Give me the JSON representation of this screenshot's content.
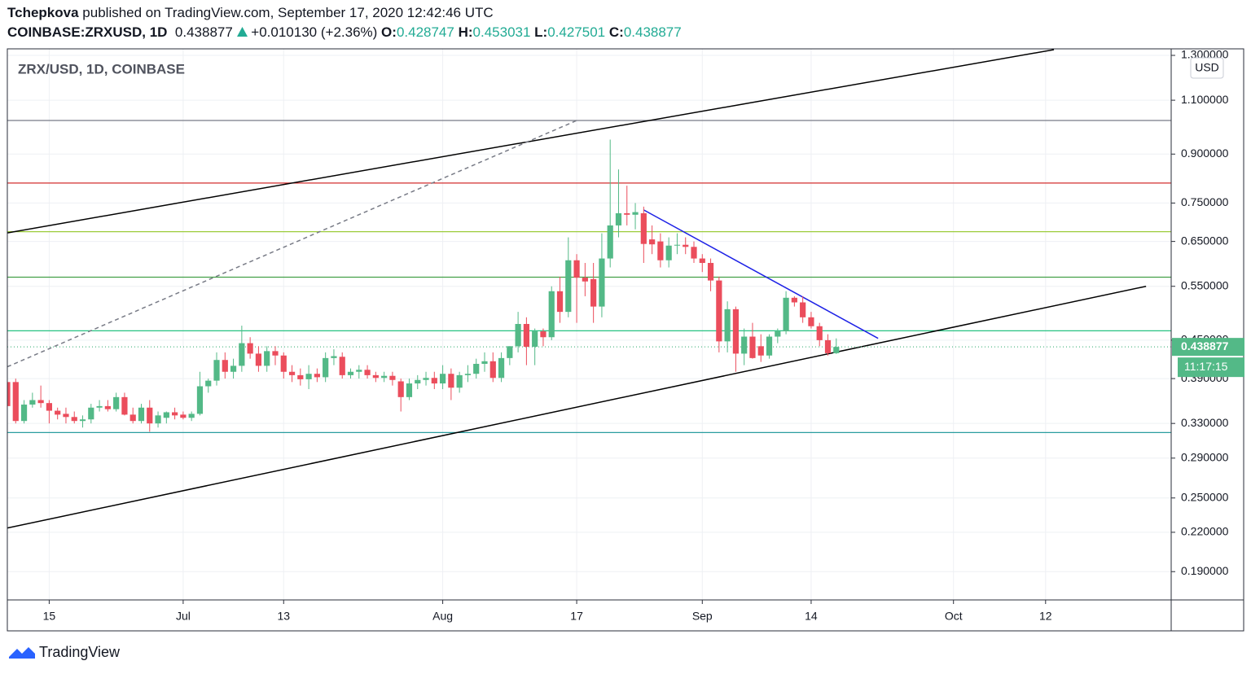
{
  "header": {
    "author": "Tchepkova",
    "published": "published on TradingView.com, September 17, 2020 12:42:46 UTC",
    "symbol": "COINBASE:ZRXUSD, 1D",
    "change": "+0.010130 (+2.36%)",
    "open_label": "O:",
    "high_label": "H:",
    "low_label": "L:",
    "close_label": "C:"
  },
  "chart_data": {
    "type": "candlestick",
    "legend": "ZRX/USD, 1D, COINBASE",
    "currency": "USD",
    "countdown": "11:17:15",
    "log_scale": true,
    "grid": true,
    "up_color": "#53b987",
    "down_color": "#eb4d5c",
    "x": [
      "2020-06-10",
      "2020-06-11",
      "2020-06-12",
      "2020-06-13",
      "2020-06-14",
      "2020-06-15",
      "2020-06-16",
      "2020-06-17",
      "2020-06-18",
      "2020-06-19",
      "2020-06-20",
      "2020-06-21",
      "2020-06-22",
      "2020-06-23",
      "2020-06-24",
      "2020-06-25",
      "2020-06-26",
      "2020-06-27",
      "2020-06-28",
      "2020-06-29",
      "2020-06-30",
      "2020-07-01",
      "2020-07-02",
      "2020-07-03",
      "2020-07-04",
      "2020-07-05",
      "2020-07-06",
      "2020-07-07",
      "2020-07-08",
      "2020-07-09",
      "2020-07-10",
      "2020-07-11",
      "2020-07-12",
      "2020-07-13",
      "2020-07-14",
      "2020-07-15",
      "2020-07-16",
      "2020-07-17",
      "2020-07-18",
      "2020-07-19",
      "2020-07-20",
      "2020-07-21",
      "2020-07-22",
      "2020-07-23",
      "2020-07-24",
      "2020-07-25",
      "2020-07-26",
      "2020-07-27",
      "2020-07-28",
      "2020-07-29",
      "2020-07-30",
      "2020-07-31",
      "2020-08-01",
      "2020-08-02",
      "2020-08-03",
      "2020-08-04",
      "2020-08-05",
      "2020-08-06",
      "2020-08-07",
      "2020-08-08",
      "2020-08-09",
      "2020-08-10",
      "2020-08-11",
      "2020-08-12",
      "2020-08-13",
      "2020-08-14",
      "2020-08-15",
      "2020-08-16",
      "2020-08-17",
      "2020-08-18",
      "2020-08-19",
      "2020-08-20",
      "2020-08-21",
      "2020-08-22",
      "2020-08-23",
      "2020-08-24",
      "2020-08-25",
      "2020-08-26",
      "2020-08-27",
      "2020-08-28",
      "2020-08-29",
      "2020-08-30",
      "2020-08-31",
      "2020-09-01",
      "2020-09-02",
      "2020-09-03",
      "2020-09-04",
      "2020-09-05",
      "2020-09-06",
      "2020-09-07",
      "2020-09-08",
      "2020-09-09",
      "2020-09-10",
      "2020-09-11",
      "2020-09-12",
      "2020-09-13",
      "2020-09-14",
      "2020-09-15",
      "2020-09-16",
      "2020-09-17"
    ],
    "open": [
      0.385,
      0.385,
      0.333,
      0.354,
      0.36,
      0.356,
      0.346,
      0.342,
      0.338,
      0.333,
      0.335,
      0.35,
      0.352,
      0.348,
      0.364,
      0.341,
      0.333,
      0.35,
      0.33,
      0.337,
      0.344,
      0.341,
      0.337,
      0.342,
      0.379,
      0.387,
      0.418,
      0.4,
      0.409,
      0.445,
      0.428,
      0.409,
      0.432,
      0.425,
      0.4,
      0.395,
      0.389,
      0.397,
      0.392,
      0.421,
      0.423,
      0.395,
      0.4,
      0.403,
      0.395,
      0.391,
      0.394,
      0.386,
      0.364,
      0.383,
      0.388,
      0.391,
      0.383,
      0.397,
      0.377,
      0.395,
      0.397,
      0.412,
      0.416,
      0.391,
      0.421,
      0.44,
      0.478,
      0.439,
      0.465,
      0.455,
      0.54,
      0.5,
      0.606,
      0.568,
      0.565,
      0.51,
      0.61,
      0.69,
      0.722,
      0.718,
      0.722,
      0.655,
      0.65,
      0.606,
      0.64,
      0.642,
      0.637,
      0.61,
      0.6,
      0.562,
      0.448,
      0.505,
      0.428,
      0.456,
      0.44,
      0.425,
      0.456,
      0.465,
      0.527,
      0.518,
      0.49,
      0.474,
      0.45,
      0.428747
    ],
    "high": [
      0.4,
      0.39,
      0.36,
      0.37,
      0.38,
      0.36,
      0.35,
      0.35,
      0.345,
      0.34,
      0.355,
      0.36,
      0.36,
      0.37,
      0.37,
      0.35,
      0.355,
      0.36,
      0.345,
      0.345,
      0.35,
      0.345,
      0.345,
      0.4,
      0.39,
      0.43,
      0.43,
      0.42,
      0.475,
      0.455,
      0.44,
      0.44,
      0.44,
      0.43,
      0.41,
      0.405,
      0.41,
      0.405,
      0.43,
      0.435,
      0.43,
      0.405,
      0.41,
      0.41,
      0.4,
      0.4,
      0.4,
      0.39,
      0.39,
      0.395,
      0.4,
      0.4,
      0.41,
      0.405,
      0.4,
      0.41,
      0.42,
      0.43,
      0.43,
      0.43,
      0.44,
      0.5,
      0.49,
      0.47,
      0.47,
      0.55,
      0.57,
      0.66,
      0.62,
      0.6,
      0.6,
      0.67,
      0.95,
      0.85,
      0.8,
      0.75,
      0.74,
      0.69,
      0.67,
      0.66,
      0.67,
      0.66,
      0.65,
      0.62,
      0.61,
      0.57,
      0.52,
      0.51,
      0.47,
      0.48,
      0.46,
      0.46,
      0.47,
      0.54,
      0.53,
      0.53,
      0.5,
      0.48,
      0.46,
      0.453031
    ],
    "low": [
      0.35,
      0.33,
      0.33,
      0.35,
      0.35,
      0.33,
      0.335,
      0.33,
      0.33,
      0.325,
      0.33,
      0.345,
      0.345,
      0.345,
      0.34,
      0.33,
      0.33,
      0.32,
      0.325,
      0.33,
      0.335,
      0.335,
      0.333,
      0.34,
      0.37,
      0.38,
      0.39,
      0.39,
      0.4,
      0.42,
      0.4,
      0.4,
      0.41,
      0.39,
      0.385,
      0.38,
      0.375,
      0.385,
      0.385,
      0.41,
      0.39,
      0.39,
      0.39,
      0.39,
      0.385,
      0.385,
      0.38,
      0.345,
      0.36,
      0.375,
      0.38,
      0.375,
      0.375,
      0.36,
      0.37,
      0.385,
      0.39,
      0.4,
      0.385,
      0.385,
      0.41,
      0.43,
      0.41,
      0.41,
      0.44,
      0.45,
      0.48,
      0.49,
      0.48,
      0.53,
      0.48,
      0.49,
      0.59,
      0.66,
      0.69,
      0.68,
      0.6,
      0.62,
      0.59,
      0.59,
      0.62,
      0.62,
      0.6,
      0.58,
      0.54,
      0.43,
      0.43,
      0.4,
      0.41,
      0.42,
      0.415,
      0.42,
      0.445,
      0.46,
      0.51,
      0.48,
      0.47,
      0.44,
      0.425,
      0.427501
    ],
    "close": [
      0.352,
      0.333,
      0.354,
      0.36,
      0.356,
      0.346,
      0.341,
      0.338,
      0.333,
      0.335,
      0.35,
      0.352,
      0.348,
      0.364,
      0.341,
      0.333,
      0.35,
      0.33,
      0.34,
      0.344,
      0.34,
      0.337,
      0.342,
      0.379,
      0.387,
      0.418,
      0.4,
      0.409,
      0.445,
      0.428,
      0.409,
      0.432,
      0.425,
      0.4,
      0.395,
      0.389,
      0.397,
      0.392,
      0.421,
      0.424,
      0.395,
      0.4,
      0.403,
      0.395,
      0.391,
      0.394,
      0.388,
      0.364,
      0.383,
      0.388,
      0.391,
      0.383,
      0.397,
      0.377,
      0.395,
      0.397,
      0.412,
      0.416,
      0.391,
      0.421,
      0.44,
      0.478,
      0.439,
      0.465,
      0.455,
      0.54,
      0.5,
      0.606,
      0.568,
      0.56,
      0.51,
      0.61,
      0.69,
      0.722,
      0.718,
      0.725,
      0.644,
      0.643,
      0.606,
      0.64,
      0.642,
      0.637,
      0.61,
      0.6,
      0.562,
      0.448,
      0.505,
      0.428,
      0.456,
      0.421,
      0.425,
      0.456,
      0.465,
      0.527,
      0.518,
      0.49,
      0.474,
      0.45,
      0.4287,
      0.438877
    ],
    "xlim": [
      "2020-06-10",
      "2020-10-27"
    ],
    "xticks": [
      {
        "value": "2020-06-15",
        "label": "15"
      },
      {
        "value": "2020-07-01",
        "label": "Jul"
      },
      {
        "value": "2020-07-13",
        "label": "13"
      },
      {
        "value": "2020-08-01",
        "label": "Aug"
      },
      {
        "value": "2020-08-17",
        "label": "17"
      },
      {
        "value": "2020-09-01",
        "label": "Sep"
      },
      {
        "value": "2020-09-14",
        "label": "14"
      },
      {
        "value": "2020-10-01",
        "label": "Oct"
      },
      {
        "value": "2020-10-12",
        "label": "12"
      }
    ],
    "ylim": [
      0.171,
      1.332
    ],
    "yticks": [
      {
        "value": 1.3,
        "label": "1.300000"
      },
      {
        "value": 1.1,
        "label": "1.100000"
      },
      {
        "value": 0.9,
        "label": "0.900000"
      },
      {
        "value": 0.75,
        "label": "0.750000"
      },
      {
        "value": 0.65,
        "label": "0.650000"
      },
      {
        "value": 0.55,
        "label": "0.550000"
      },
      {
        "value": 0.45,
        "label": "0.450000"
      },
      {
        "value": 0.39,
        "label": "0.390000"
      },
      {
        "value": 0.33,
        "label": "0.330000"
      },
      {
        "value": 0.29,
        "label": "0.290000"
      },
      {
        "value": 0.25,
        "label": "0.250000"
      },
      {
        "value": 0.22,
        "label": "0.220000"
      },
      {
        "value": 0.19,
        "label": "0.190000"
      }
    ],
    "levels": [
      {
        "value": 1.02,
        "color": "#787b86"
      },
      {
        "value": 0.808,
        "color": "#d32f2f"
      },
      {
        "value": 0.674,
        "color": "#9ccc3a"
      },
      {
        "value": 0.569,
        "color": "#43a047"
      },
      {
        "value": 0.466,
        "color": "#26c281"
      },
      {
        "value": 0.319,
        "color": "#2a9d9f"
      }
    ],
    "trendlines": [
      {
        "points": [
          [
            "2020-06-10",
            0.671
          ],
          [
            "2020-10-13",
            1.328
          ]
        ],
        "color": "#000000",
        "dashed": false
      },
      {
        "points": [
          [
            "2020-06-10",
            0.2235
          ],
          [
            "2020-10-24",
            0.55
          ]
        ],
        "color": "#000000",
        "dashed": false
      },
      {
        "points": [
          [
            "2020-06-10",
            0.4075
          ],
          [
            "2020-08-17",
            1.02
          ]
        ],
        "color": "#787b86",
        "dashed": true
      },
      {
        "points": [
          [
            "2020-08-25",
            0.731
          ],
          [
            "2020-09-22",
            0.453
          ]
        ],
        "color": "#1e22e6",
        "dashed": false
      }
    ],
    "last_price_line": true
  },
  "footer": {
    "brand": "TradingView"
  }
}
